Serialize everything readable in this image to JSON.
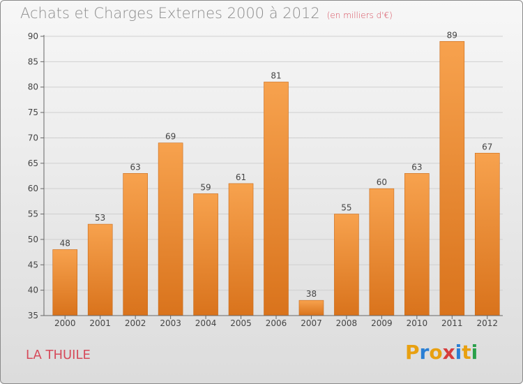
{
  "chart_data": {
    "type": "bar",
    "title": "Achats et Charges Externes 2000 à 2012",
    "subtitle": "(en milliers d'€)",
    "categories": [
      "2000",
      "2001",
      "2002",
      "2003",
      "2004",
      "2005",
      "2006",
      "2007",
      "2008",
      "2009",
      "2010",
      "2011",
      "2012"
    ],
    "values": [
      48,
      53,
      63,
      69,
      59,
      61,
      81,
      38,
      55,
      60,
      63,
      89,
      67
    ],
    "ylim": [
      35,
      90
    ],
    "yticks": [
      35,
      40,
      45,
      50,
      55,
      60,
      65,
      70,
      75,
      80,
      85,
      90
    ],
    "grid": true,
    "bar_color": "#f0923a"
  },
  "place": "LA THUILE",
  "logo": {
    "letters": [
      "P",
      "r",
      "o",
      "x",
      "i",
      "t",
      "i"
    ],
    "colors": [
      "#e8a010",
      "#2a7fd4",
      "#e8a010",
      "#d63c3c",
      "#2a7fd4",
      "#e8a010",
      "#2aa04a"
    ]
  }
}
